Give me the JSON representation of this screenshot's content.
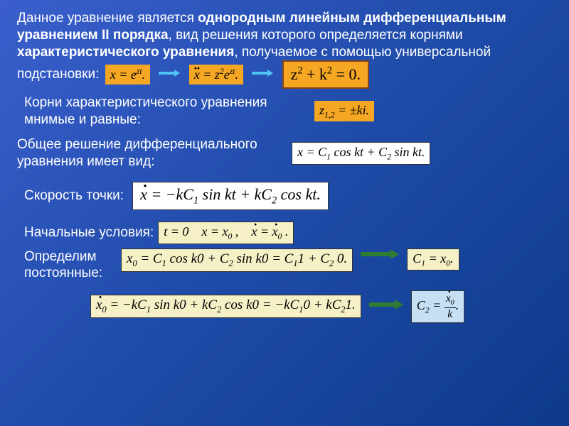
{
  "colors": {
    "bg_gradient_start": "#3a5fcd",
    "bg_gradient_end": "#0d3a8a",
    "formula_yellow": "#f5f0c5",
    "formula_orange": "#f5a623",
    "formula_white": "#ffffff",
    "formula_lightblue": "#c5e0f5",
    "text_white": "#ffffff",
    "arrow_cyan": "#4fc3f7",
    "arrow_green": "#2e7d32"
  },
  "intro": {
    "part1": "Данное уравнение является ",
    "bold1": "однородным линейным дифференциальным уравнением II порядка",
    "part2": ", вид решения которого определяется корнями ",
    "bold2": "характеристического уравнения",
    "part3": ", получаемое с помощью универсальной подстановки:"
  },
  "subst": {
    "f1_html": "x = e<sup>zt</sup>.",
    "f2_html": "<span class='ddot-over'>x</span> = z<sup>2</sup>e<sup>zt</sup>.",
    "f3_html": "z<sup>2</sup> + k<sup>2</sup> = 0."
  },
  "roots": {
    "text": "Корни характеристического уравнения мнимые и равные:",
    "formula_html": "z<sub>1,2</sub> = ±ki."
  },
  "general": {
    "text": "Общее решение дифференциального уравнения имеет вид:",
    "formula_html": "x = C<sub>1</sub> cos kt + C<sub>2</sub> sin kt."
  },
  "velocity": {
    "text": "Скорость точки:",
    "formula_html": "<span class='dot-over'>x</span> = −kC<sub>1</sub> sin kt + kC<sub>2</sub> cos kt."
  },
  "initial": {
    "label": "Начальные условия:",
    "formula_html": "t = 0 &nbsp;&nbsp; x = x<sub>0</sub> , &nbsp;&nbsp; <span class='dot-over'>x</span> = <span class='dot-over'>x</span><sub>0</sub> ."
  },
  "determine": {
    "label": "Определим постоянные:",
    "f1_html": "x<sub>0</sub> = C<sub>1</sub> cos k0 + C<sub>2</sub> sin k0 = C<sub>1</sub>1 + C<sub>2</sub> 0.",
    "r1_html": "C<sub>1</sub> = x<sub>0</sub>.",
    "f2_html": "<span class='dot-over'>x</span><sub>0</sub> = −kC<sub>1</sub> sin k0 + kC<sub>2</sub> cos k0 = −kC<sub>1</sub>0 + kC<sub>2</sub>1.",
    "r2_html": "C<sub>2</sub> = <span class='frac'><span class='num'><span class='dot-over'>x</span><sub>0</sub></span><span class='den'>k</span></span>."
  }
}
